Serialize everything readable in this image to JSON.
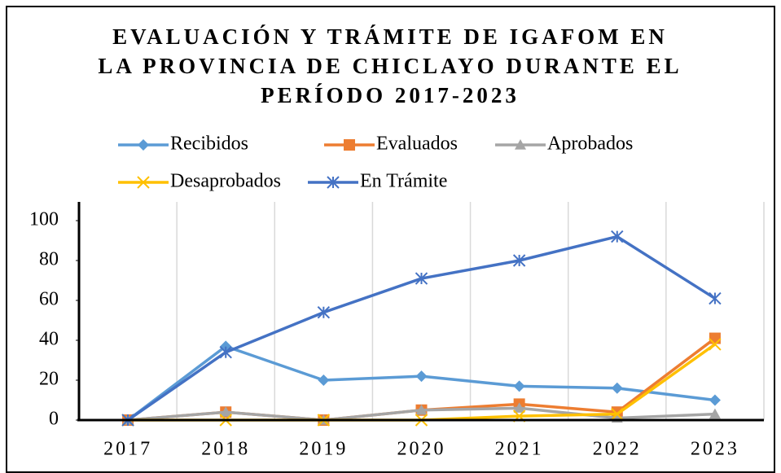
{
  "chart_data": {
    "type": "line",
    "title": [
      "EVALUACIÓN Y TRÁMITE DE IGAFOM EN",
      "LA PROVINCIA DE CHICLAYO DURANTE EL",
      "PERÍODO 2017-2023"
    ],
    "categories": [
      "2017",
      "2018",
      "2019",
      "2020",
      "2021",
      "2022",
      "2023"
    ],
    "series": [
      {
        "name": "Recibidos",
        "color": "#5b9bd5",
        "marker": "diamond",
        "values": [
          0,
          37,
          20,
          22,
          17,
          16,
          10
        ]
      },
      {
        "name": "Evaluados",
        "color": "#ed7d31",
        "marker": "square",
        "values": [
          0,
          4,
          0,
          5,
          8,
          4,
          41
        ]
      },
      {
        "name": "Aprobados",
        "color": "#a5a5a5",
        "marker": "triangle",
        "values": [
          0,
          4,
          0,
          5,
          6,
          1,
          3
        ]
      },
      {
        "name": "Desaprobados",
        "color": "#ffc000",
        "marker": "x",
        "values": [
          0,
          0,
          0,
          0,
          2,
          3,
          38
        ]
      },
      {
        "name": "En Trámite",
        "color": "#4472c4",
        "marker": "asterisk",
        "values": [
          0,
          34,
          54,
          71,
          80,
          92,
          61
        ]
      }
    ],
    "ylim": [
      0,
      100
    ],
    "yticks": [
      0,
      20,
      40,
      60,
      80,
      100
    ],
    "xgrid": true,
    "legend": "top"
  }
}
